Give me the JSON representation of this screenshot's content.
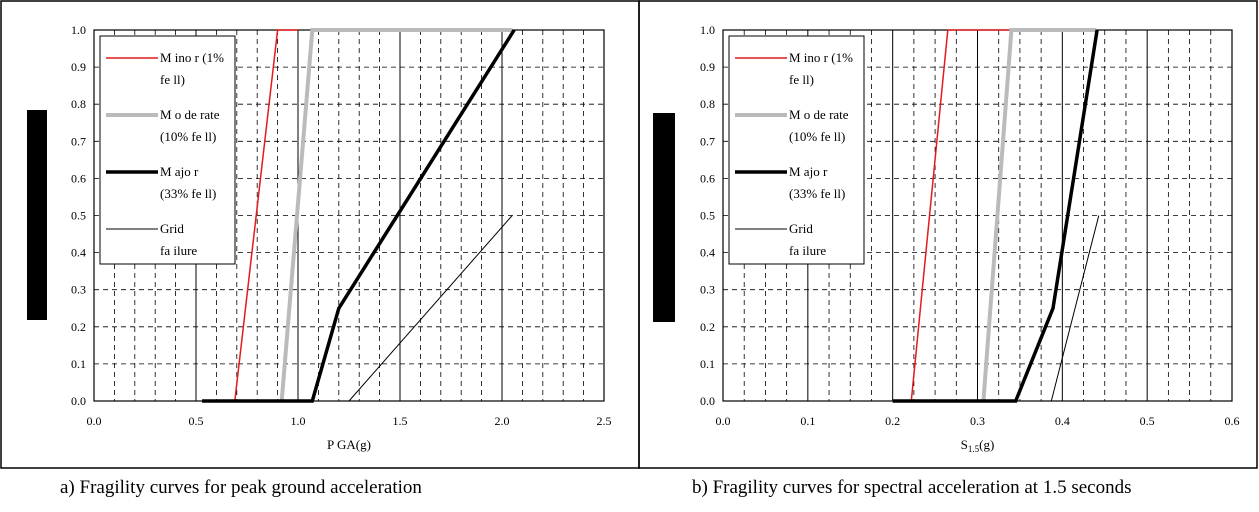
{
  "captions": {
    "a": "a) Fragility curves for peak ground acceleration",
    "b": "b) Fragility curves for spectral acceleration at 1.5 seconds"
  },
  "chart_data": [
    {
      "type": "line",
      "title": "",
      "xlabel": "P GA(g)",
      "xlabel_sub": "",
      "xlabel_tail": "",
      "ylabel": "",
      "xlim": [
        0,
        2.5
      ],
      "ylim": [
        0,
        1
      ],
      "xticks": [
        "0.0",
        "0.5",
        "1.0",
        "1.5",
        "2.0",
        "2.5"
      ],
      "yticks": [
        "0.0",
        "0.1",
        "0.2",
        "0.3",
        "0.4",
        "0.5",
        "0.6",
        "0.7",
        "0.8",
        "0.9",
        "1.0"
      ],
      "grid": "major solid, minor dashed",
      "legend": "top-left",
      "series": [
        {
          "name": "Minor (1% fell)",
          "label_lines": [
            "M ino r (1%",
            "fe ll)"
          ],
          "color": "#e41a1c",
          "width": 1.5,
          "points": [
            [
              0.69,
              0
            ],
            [
              0.9,
              1
            ],
            [
              1.0,
              1
            ]
          ]
        },
        {
          "name": "Moderate (10% fell)",
          "label_lines": [
            "M o de rate",
            "(10% fe ll)"
          ],
          "color": "#bbbbbb",
          "width": 4,
          "points": [
            [
              0.92,
              0
            ],
            [
              1.07,
              1
            ],
            [
              2.05,
              1
            ]
          ]
        },
        {
          "name": "Major (33% fell)",
          "label_lines": [
            "M ajo r",
            "(33% fe ll)"
          ],
          "color": "#000000",
          "width": 3.5,
          "points": [
            [
              0.53,
              0
            ],
            [
              1.07,
              0
            ],
            [
              1.2,
              0.25
            ],
            [
              2.06,
              1
            ]
          ]
        },
        {
          "name": "Grid failure",
          "label_lines": [
            "Grid",
            "fa ilure"
          ],
          "color": "#000000",
          "width": 1,
          "points": [
            [
              1.25,
              0
            ],
            [
              2.05,
              0.5
            ]
          ]
        }
      ]
    },
    {
      "type": "line",
      "title": "",
      "xlabel": "S",
      "xlabel_sub": "1.5",
      "xlabel_tail": "(g)",
      "ylabel": "",
      "xlim": [
        0,
        0.6
      ],
      "ylim": [
        0,
        1
      ],
      "xticks": [
        "0.0",
        "0.1",
        "0.2",
        "0.3",
        "0.4",
        "0.5",
        "0.6"
      ],
      "yticks": [
        "0.0",
        "0.1",
        "0.2",
        "0.3",
        "0.4",
        "0.5",
        "0.6",
        "0.7",
        "0.8",
        "0.9",
        "1.0"
      ],
      "grid": "major solid, minor dashed",
      "legend": "top-left",
      "series": [
        {
          "name": "Minor (1% fell)",
          "label_lines": [
            "M ino r (1%",
            "fe ll)"
          ],
          "color": "#e41a1c",
          "width": 1.5,
          "points": [
            [
              0.222,
              0
            ],
            [
              0.265,
              1
            ],
            [
              0.34,
              1
            ]
          ]
        },
        {
          "name": "Moderate (10% fell)",
          "label_lines": [
            "M o de rate",
            "(10% fe ll)"
          ],
          "color": "#bbbbbb",
          "width": 4,
          "points": [
            [
              0.307,
              0
            ],
            [
              0.34,
              1
            ],
            [
              0.44,
              1
            ]
          ]
        },
        {
          "name": "Major (33% fell)",
          "label_lines": [
            "M ajo r",
            "(33% fe ll)"
          ],
          "color": "#000000",
          "width": 3.5,
          "points": [
            [
              0.2,
              0
            ],
            [
              0.345,
              0
            ],
            [
              0.389,
              0.25
            ],
            [
              0.441,
              1
            ]
          ]
        },
        {
          "name": "Grid failure",
          "label_lines": [
            "Grid",
            "fa ilure"
          ],
          "color": "#000000",
          "width": 1,
          "points": [
            [
              0.387,
              0
            ],
            [
              0.443,
              0.5
            ]
          ]
        }
      ]
    }
  ]
}
